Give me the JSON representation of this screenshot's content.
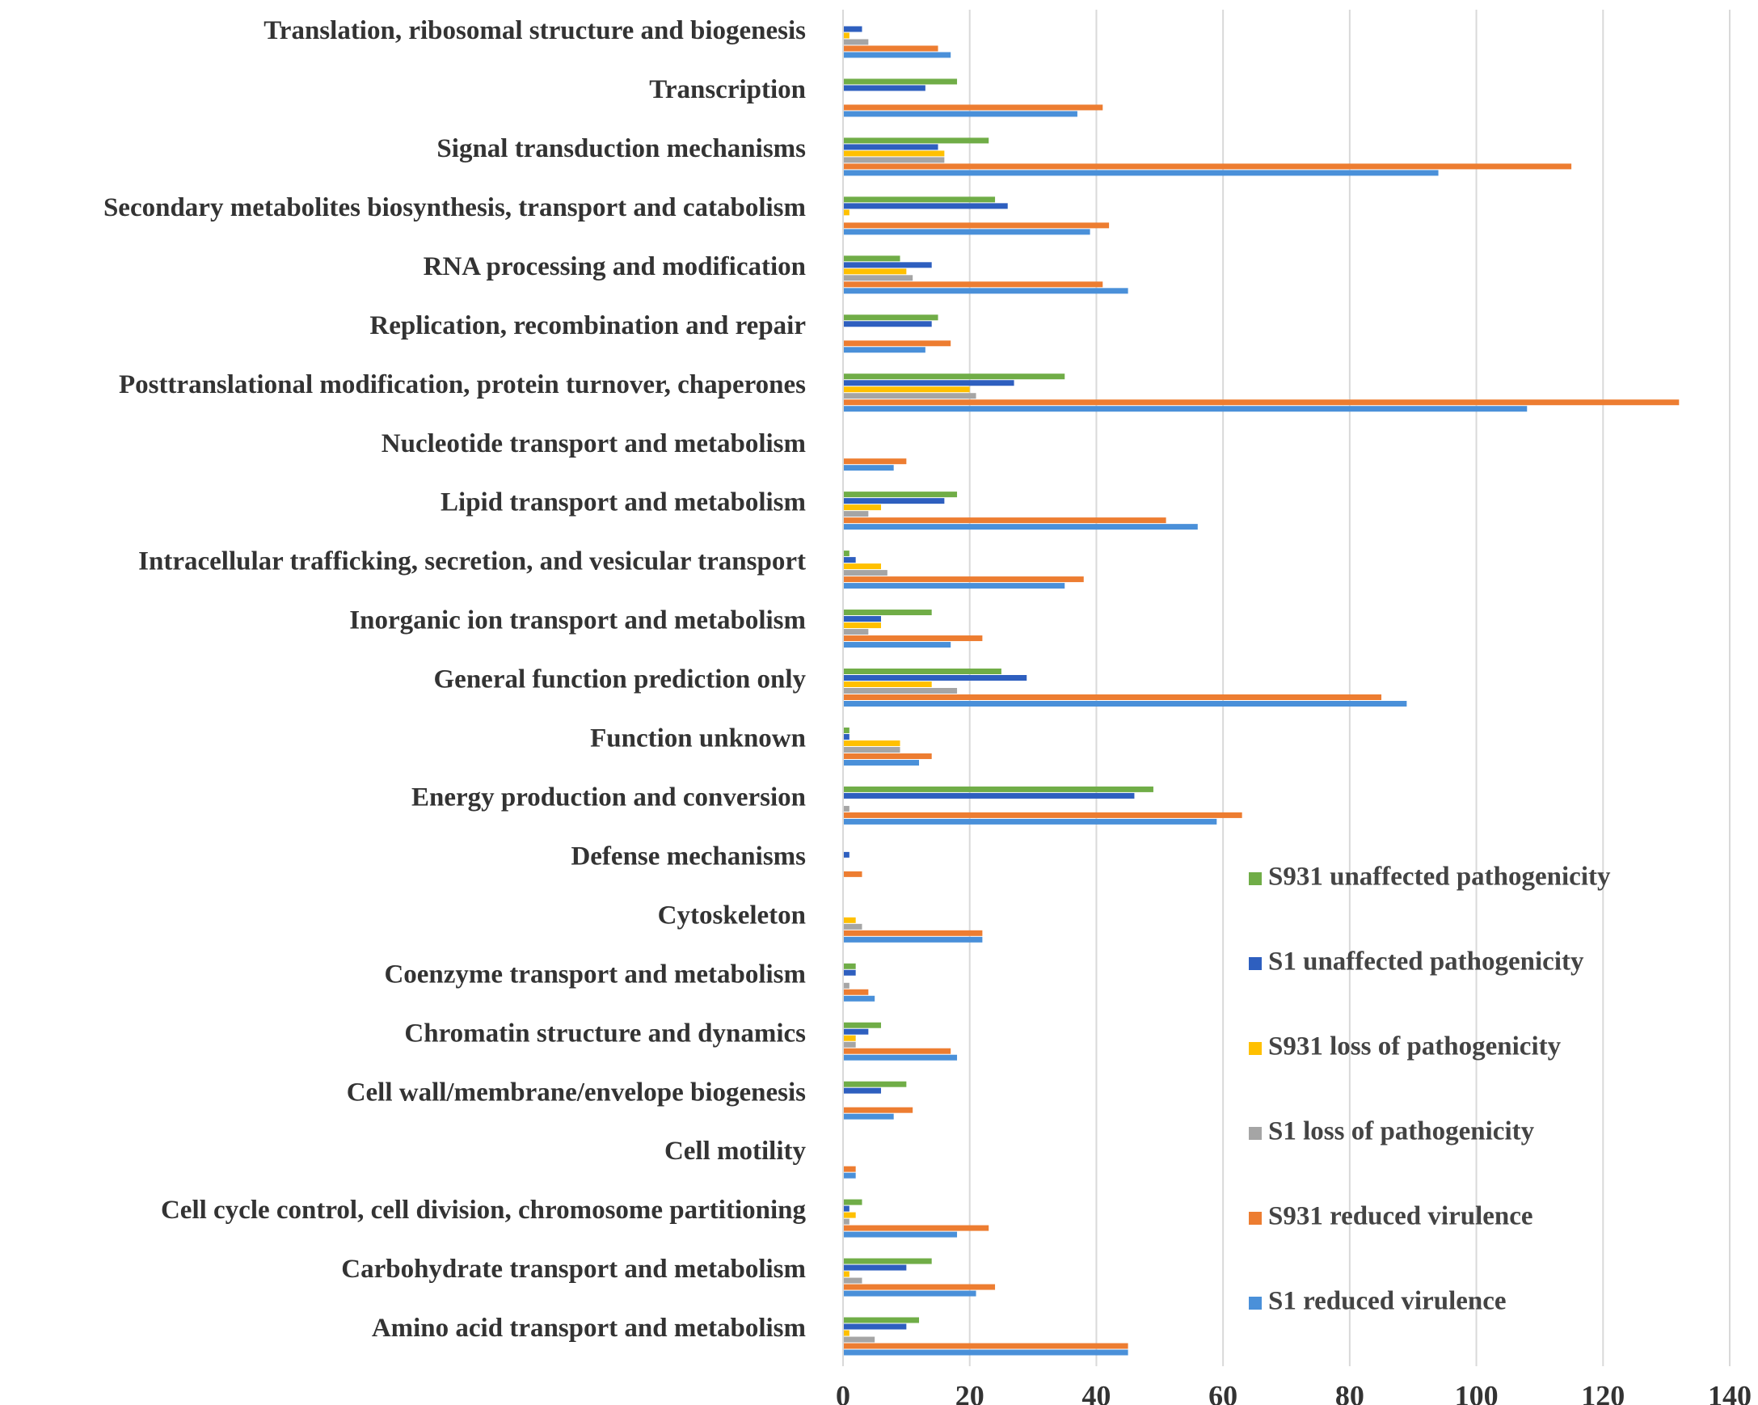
{
  "chart_data": {
    "type": "bar",
    "orientation": "horizontal",
    "title": "",
    "xlabel": "",
    "ylabel": "",
    "xlim": [
      0,
      140
    ],
    "x_ticks": [
      0,
      20,
      40,
      60,
      80,
      100,
      120,
      140
    ],
    "grid": true,
    "legend_position": "bottom-right",
    "categories": [
      "Translation, ribosomal structure and biogenesis",
      "Transcription",
      "Signal transduction mechanisms",
      "Secondary metabolites biosynthesis, transport and catabolism",
      "RNA processing and modification",
      "Replication, recombination and repair",
      "Posttranslational modification, protein turnover, chaperones",
      "Nucleotide transport and metabolism",
      "Lipid transport and metabolism",
      "Intracellular trafficking, secretion, and vesicular transport",
      "Inorganic ion transport and metabolism",
      "General function prediction only",
      "Function unknown",
      "Energy production and conversion",
      "Defense mechanisms",
      "Cytoskeleton",
      "Coenzyme transport and metabolism",
      "Chromatin structure and dynamics",
      "Cell wall/membrane/envelope biogenesis",
      "Cell motility",
      "Cell cycle control, cell division, chromosome partitioning",
      "Carbohydrate transport and metabolism",
      "Amino acid transport and metabolism"
    ],
    "series": [
      {
        "name": "S931 unaffected pathogenicity",
        "color": "#70AD47",
        "values": [
          0,
          18,
          23,
          24,
          9,
          15,
          35,
          0,
          18,
          1,
          14,
          25,
          1,
          49,
          0,
          0,
          2,
          6,
          10,
          0,
          3,
          14,
          12
        ]
      },
      {
        "name": "S1 unaffected pathogenicity",
        "color": "#2E5FBF",
        "values": [
          3,
          13,
          15,
          26,
          14,
          14,
          27,
          0,
          16,
          2,
          6,
          29,
          1,
          46,
          1,
          0,
          2,
          4,
          6,
          0,
          1,
          10,
          10
        ]
      },
      {
        "name": "S931 loss of pathogenicity",
        "color": "#FFC000",
        "values": [
          1,
          0,
          16,
          1,
          10,
          0,
          20,
          0,
          6,
          6,
          6,
          14,
          9,
          0,
          0,
          2,
          0,
          2,
          0,
          0,
          2,
          1,
          1
        ]
      },
      {
        "name": "S1 loss of pathogenicity",
        "color": "#A5A5A5",
        "values": [
          4,
          0,
          16,
          0,
          11,
          0,
          21,
          0,
          4,
          7,
          4,
          18,
          9,
          1,
          0,
          3,
          1,
          2,
          0,
          0,
          1,
          3,
          5
        ]
      },
      {
        "name": "S931 reduced virulence",
        "color": "#ED7D31",
        "values": [
          15,
          41,
          115,
          42,
          41,
          17,
          132,
          10,
          51,
          38,
          22,
          85,
          14,
          63,
          3,
          22,
          4,
          17,
          11,
          2,
          23,
          24,
          45
        ]
      },
      {
        "name": "S1 reduced virulence",
        "color": "#4A90D9",
        "values": [
          17,
          37,
          94,
          39,
          45,
          13,
          108,
          8,
          56,
          35,
          17,
          89,
          12,
          59,
          0,
          22,
          5,
          18,
          8,
          2,
          18,
          21,
          45
        ]
      }
    ],
    "legend_order": [
      0,
      1,
      2,
      3,
      4,
      5
    ]
  }
}
